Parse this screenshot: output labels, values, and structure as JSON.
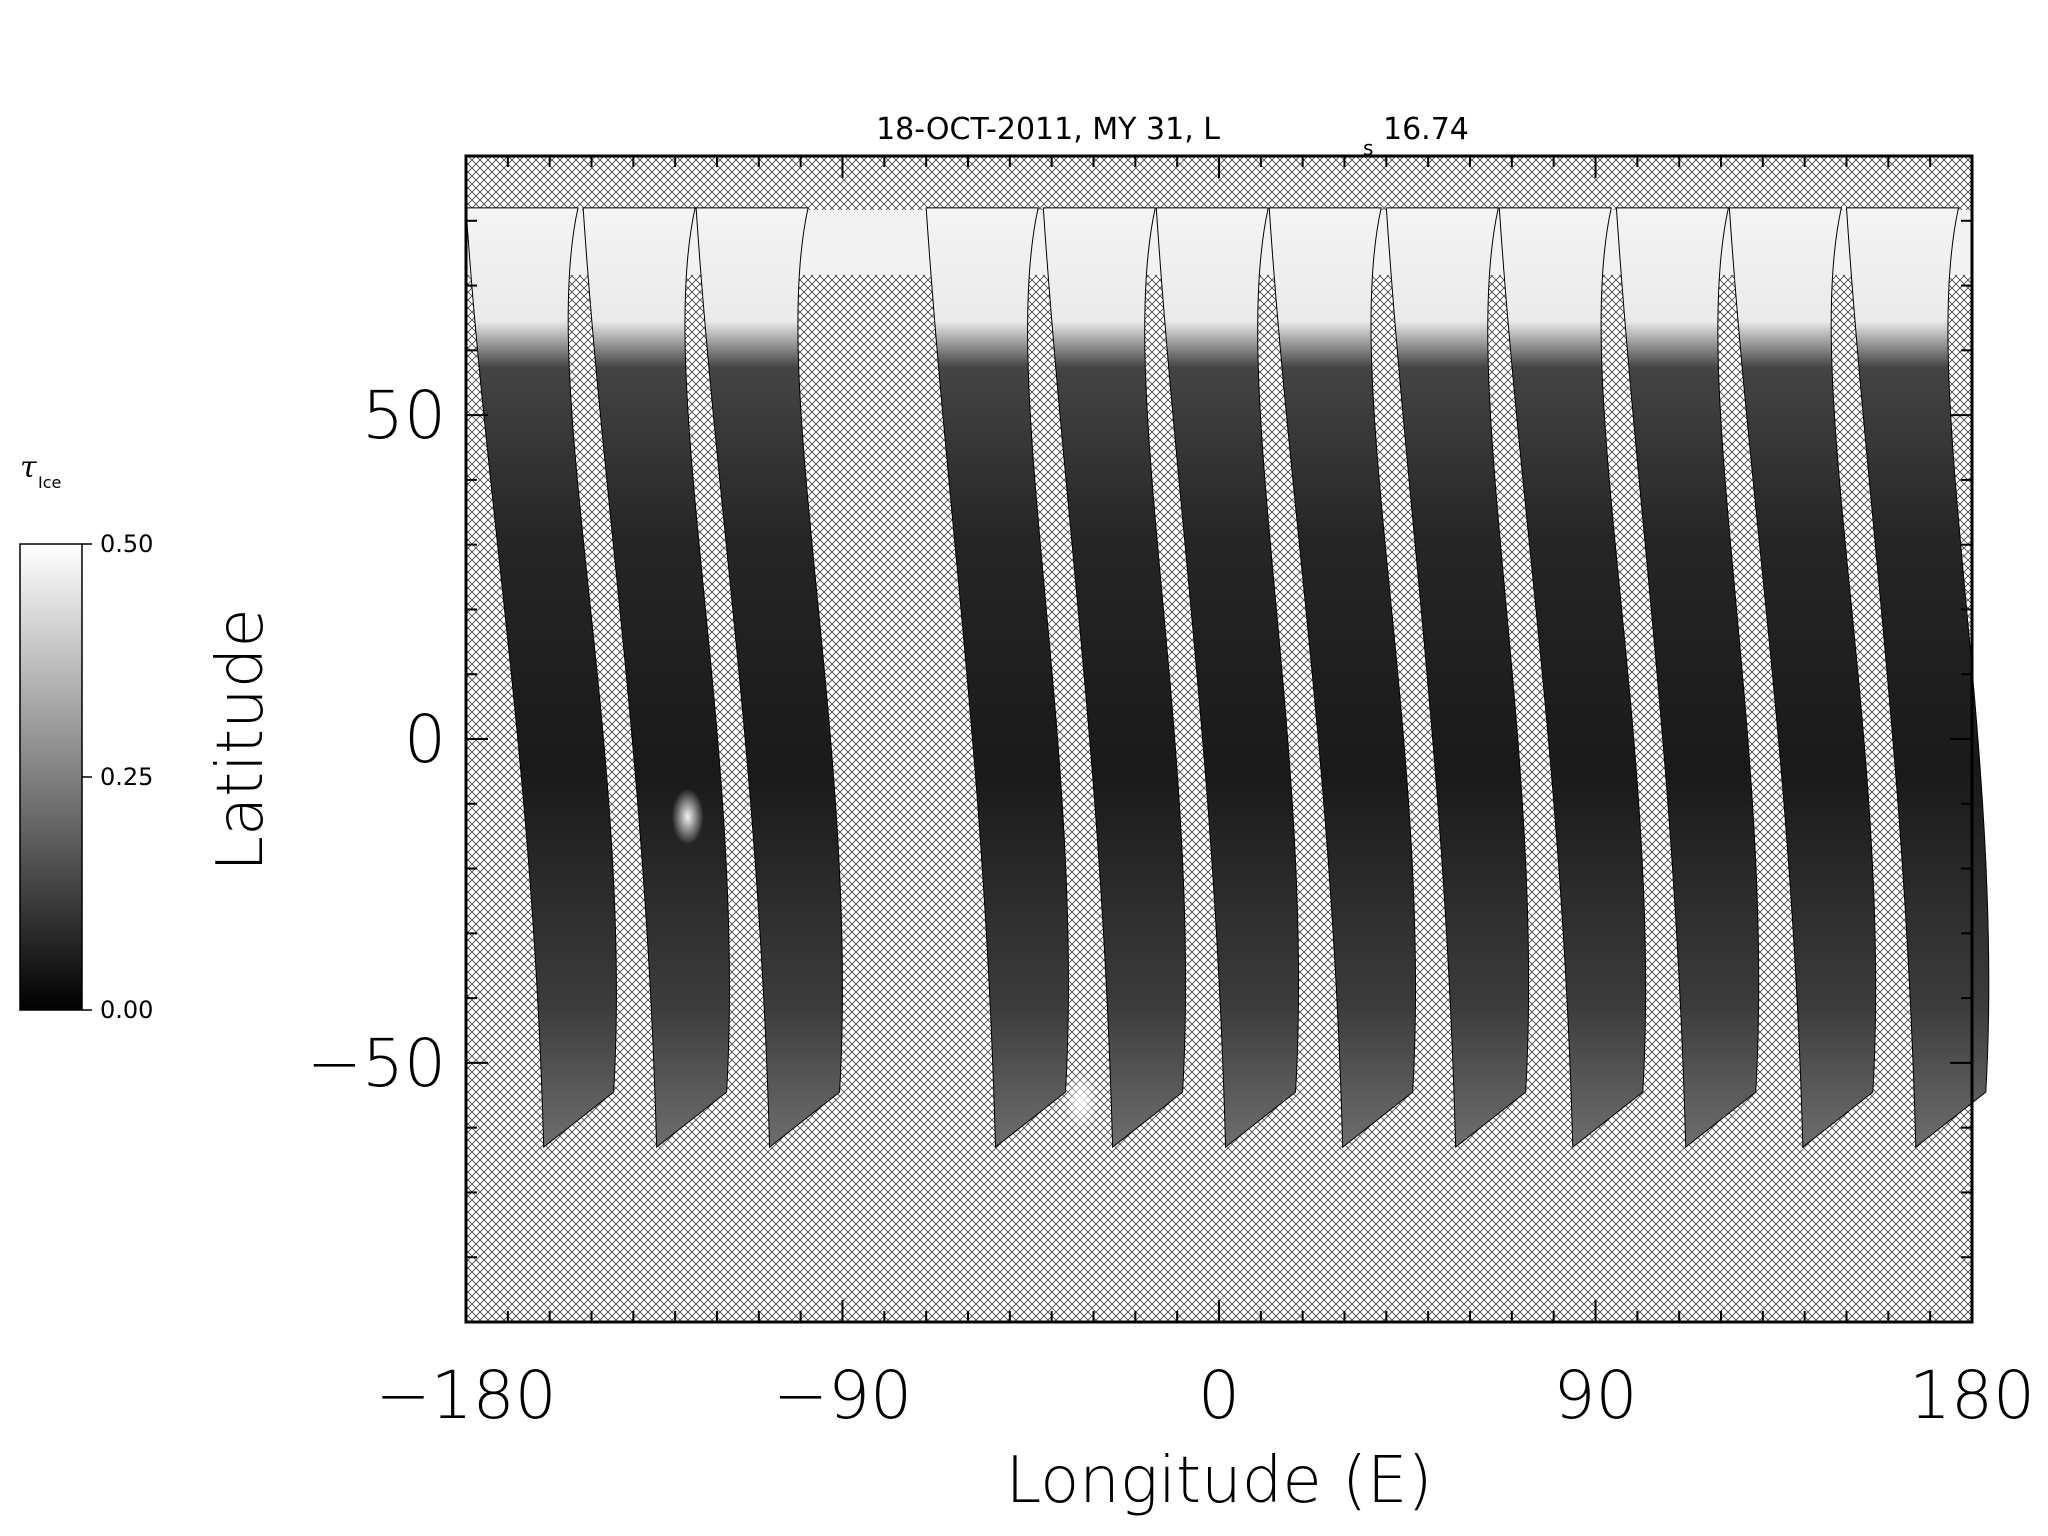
{
  "chart_data": {
    "type": "heatmap",
    "title": "18-OCT-2011, MY 31,  L",
    "title_sub": "s",
    "title_value": "16.74",
    "xlabel": "Longitude (E)",
    "ylabel": "Latitude",
    "xlim": [
      -180,
      180
    ],
    "ylim": [
      -90,
      90
    ],
    "x_ticks": [
      -180,
      -90,
      0,
      90,
      180
    ],
    "x_tick_labels": [
      "−180",
      "−90",
      "0",
      "90",
      "180"
    ],
    "y_ticks": [
      -50,
      0,
      50
    ],
    "y_tick_labels": [
      "−50",
      "0",
      "50"
    ],
    "no_data_pattern": "crosshatch",
    "cap_top_latitude": 82,
    "colorbar": {
      "title": "τ",
      "title_sub": "Ice",
      "min": 0.0,
      "max": 0.5,
      "ticks": [
        0.0,
        0.25,
        0.5
      ],
      "tick_labels": [
        "0.00",
        "0.25",
        "0.50"
      ],
      "colormap": "grayscale"
    },
    "swaths": [
      {
        "lon_north": -180,
        "lon_south": -160,
        "lat_south": -63
      },
      {
        "lon_north": -152,
        "lon_south": -133,
        "lat_south": -63
      },
      {
        "lon_north": -125,
        "lon_south": -106,
        "lat_south": -63
      },
      {
        "lon_north": -70,
        "lon_south": -52,
        "lat_south": -63
      },
      {
        "lon_north": -42,
        "lon_south": -24,
        "lat_south": -63
      },
      {
        "lon_north": -15,
        "lon_south": 3,
        "lat_south": -63
      },
      {
        "lon_north": 12,
        "lon_south": 31,
        "lat_south": -63
      },
      {
        "lon_north": 40,
        "lon_south": 58,
        "lat_south": -63
      },
      {
        "lon_north": 67,
        "lon_south": 86,
        "lat_south": -63
      },
      {
        "lon_north": 95,
        "lon_south": 113,
        "lat_south": -63
      },
      {
        "lon_north": 122,
        "lon_south": 141,
        "lat_south": -63
      },
      {
        "lon_north": 150,
        "lon_south": 168,
        "lat_south": -63
      }
    ],
    "features": [
      {
        "name": "bright-cloud-patch",
        "lon": -127,
        "lat": -12,
        "tau": 0.45
      },
      {
        "name": "bright-south-patch",
        "lon": -33,
        "lat": -56,
        "tau": 0.35
      }
    ]
  }
}
